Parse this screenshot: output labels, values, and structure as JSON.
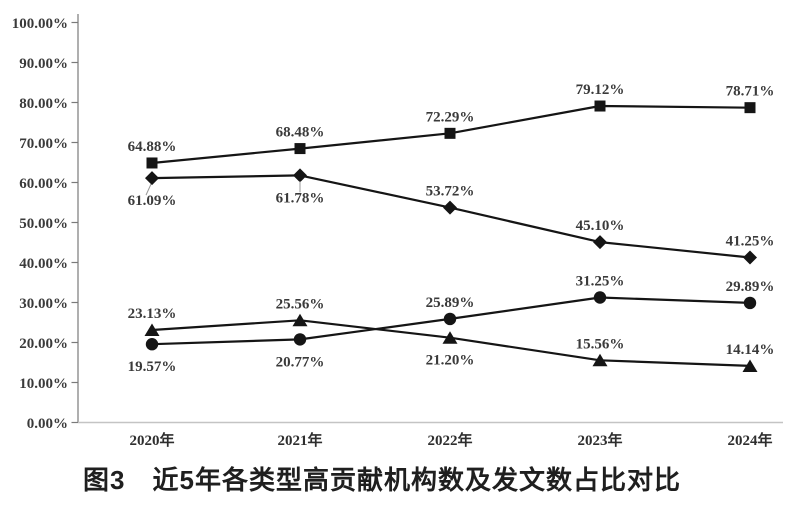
{
  "figure": {
    "caption": "图3　近5年各类型高贡献机构数及发文数占比对比"
  },
  "colors": {
    "line": "#151515",
    "marker": "#151515",
    "data_label": "#3a3a3a",
    "axis": "#7a7a7a",
    "baseline": "#c4c4c4",
    "leader": "#999999"
  },
  "chart_data": {
    "type": "line",
    "title": "图3　近5年各类型高贡献机构数及发文数占比对比",
    "categories": [
      "2020年",
      "2021年",
      "2022年",
      "2023年",
      "2024年"
    ],
    "xlabel": "",
    "ylabel": "",
    "ylim": [
      0,
      100
    ],
    "y_tick_step": 10,
    "y_ticks_top_down": [
      "100.00%",
      "90.00%",
      "80.00%",
      "70.00%",
      "60.00%",
      "50.00%",
      "40.00%",
      "30.00%",
      "20.00%",
      "10.00%",
      "0.00%"
    ],
    "grid": false,
    "legend": "none",
    "series": [
      {
        "name": "square",
        "marker": "square",
        "values": [
          64.88,
          68.48,
          72.29,
          79.12,
          78.71
        ],
        "labels": [
          "64.88%",
          "68.48%",
          "72.29%",
          "79.12%",
          "78.71%"
        ],
        "label_pos": [
          "above",
          "above",
          "above",
          "above",
          "above"
        ]
      },
      {
        "name": "diamond",
        "marker": "diamond",
        "values": [
          61.09,
          61.78,
          53.72,
          45.1,
          41.25
        ],
        "labels": [
          "61.09%",
          "61.78%",
          "53.72%",
          "45.10%",
          "41.25%"
        ],
        "label_pos": [
          "below-leader-diag",
          "below-leader-vert",
          "above",
          "above",
          "above"
        ]
      },
      {
        "name": "triangle",
        "marker": "triangle",
        "values": [
          23.13,
          25.56,
          21.2,
          15.56,
          14.14
        ],
        "labels": [
          "23.13%",
          "25.56%",
          "21.20%",
          "15.56%",
          "14.14%"
        ],
        "label_pos": [
          "above",
          "above",
          "below",
          "above",
          "above"
        ]
      },
      {
        "name": "circle",
        "marker": "circle",
        "values": [
          19.57,
          20.77,
          25.89,
          31.25,
          29.89
        ],
        "labels": [
          "19.57%",
          "20.77%",
          "25.89%",
          "31.25%",
          "29.89%"
        ],
        "label_pos": [
          "below",
          "below",
          "above",
          "above",
          "above"
        ]
      }
    ]
  }
}
